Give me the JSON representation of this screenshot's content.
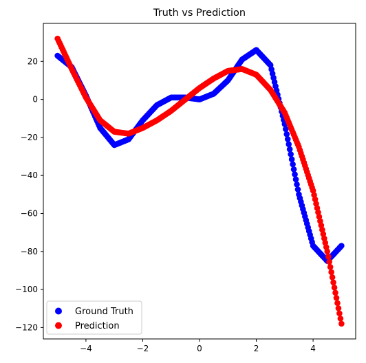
{
  "chart_data": {
    "type": "scatter",
    "title": "Truth vs Prediction",
    "xlabel": "",
    "ylabel": "",
    "xlim": [
      -5.5,
      5.5
    ],
    "ylim": [
      -126,
      40
    ],
    "xticks": [
      -4,
      -2,
      0,
      2,
      4
    ],
    "yticks": [
      20,
      0,
      -20,
      -40,
      -60,
      -80,
      -100,
      -120
    ],
    "xtick_labels": [
      "−4",
      "−2",
      "0",
      "2",
      "4"
    ],
    "ytick_labels": [
      "20",
      "0",
      "−20",
      "−40",
      "−60",
      "−80",
      "−100",
      "−120"
    ],
    "grid": false,
    "legend_position": "lower-left",
    "series": [
      {
        "name": "Ground Truth",
        "color": "#0000ff",
        "x": [
          -5.0,
          -4.5,
          -4.0,
          -3.5,
          -3.0,
          -2.5,
          -2.0,
          -1.5,
          -1.0,
          -0.5,
          0.0,
          0.5,
          1.0,
          1.5,
          2.0,
          2.5,
          3.0,
          3.5,
          4.0,
          4.5,
          5.0
        ],
        "y": [
          23,
          17,
          2,
          -15,
          -24,
          -21,
          -11,
          -3,
          1,
          1,
          0,
          3,
          10,
          21,
          26,
          18,
          -13,
          -50,
          -77,
          -85,
          -77
        ]
      },
      {
        "name": "Prediction",
        "color": "#ff0000",
        "x": [
          -5.0,
          -4.5,
          -4.0,
          -3.5,
          -3.0,
          -2.5,
          -2.0,
          -1.5,
          -1.0,
          -0.5,
          0.0,
          0.5,
          1.0,
          1.5,
          2.0,
          2.5,
          3.0,
          3.5,
          4.0,
          4.5,
          5.0
        ],
        "y": [
          32,
          16,
          1,
          -11,
          -17,
          -18,
          -15,
          -11,
          -6,
          0,
          6,
          11,
          15,
          16,
          13,
          5,
          -7,
          -25,
          -48,
          -80,
          -118
        ]
      }
    ]
  }
}
